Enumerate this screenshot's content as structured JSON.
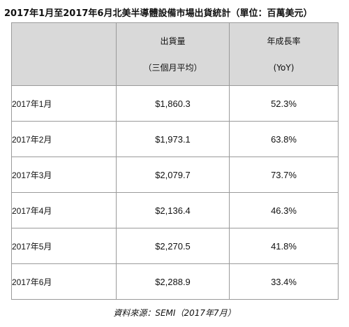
{
  "title": "2017年1月至2017年6月北美半導體設備市場出貨統計（單位：百萬美元）",
  "table": {
    "headers": {
      "shipments_line1": "出貨量",
      "shipments_line2": "（三個月平均）",
      "yoy_line1": "年成長率",
      "yoy_line2": "(YoY)"
    },
    "rows": [
      {
        "month": "2017年1月",
        "shipments": "$1,860.3",
        "yoy": "52.3%"
      },
      {
        "month": "2017年2月",
        "shipments": "$1,973.1",
        "yoy": "63.8%"
      },
      {
        "month": "2017年3月",
        "shipments": "$2,079.7",
        "yoy": "73.7%"
      },
      {
        "month": "2017年4月",
        "shipments": "$2,136.4",
        "yoy": "46.3%"
      },
      {
        "month": "2017年5月",
        "shipments": "$2,270.5",
        "yoy": "41.8%"
      },
      {
        "month": "2017年6月",
        "shipments": "$2,288.9",
        "yoy": "33.4%"
      }
    ]
  },
  "source": "資料來源：SEMI（2017年7月）"
}
